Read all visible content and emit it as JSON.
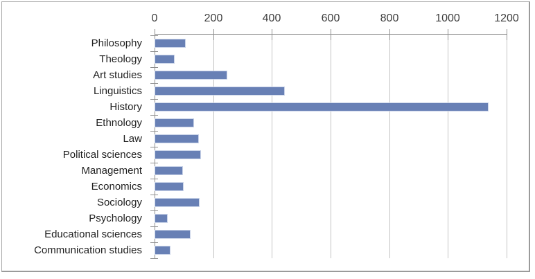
{
  "chart_data": {
    "type": "bar",
    "orientation": "horizontal",
    "title": "",
    "xlabel": "",
    "ylabel": "",
    "categories": [
      "Philosophy",
      "Theology",
      "Art studies",
      "Linguistics",
      "History",
      "Ethnology",
      "Law",
      "Political sciences",
      "Management",
      "Economics",
      "Sociology",
      "Psychology",
      "Educational sciences",
      "Communication studies"
    ],
    "values": [
      102,
      63,
      243,
      440,
      1135,
      130,
      146,
      153,
      92,
      94,
      148,
      40,
      118,
      50
    ],
    "xlim": [
      0,
      1200
    ],
    "x_ticks": [
      0,
      200,
      400,
      600,
      800,
      1000,
      1200
    ],
    "grid": true,
    "legend": false,
    "axis_position": "top",
    "colors": {
      "bar_fill": "#6880B5",
      "bar_halo": "#C9D3E8",
      "gridline": "#C3C3C3",
      "axis_line": "#8F8F8F",
      "tick_mark": "#8F8F8F",
      "value_label_text": "#3D3D3D",
      "category_label_text": "#1F1F1F",
      "frame_border": "#A6A6A6",
      "background": "#FFFFFF"
    }
  }
}
